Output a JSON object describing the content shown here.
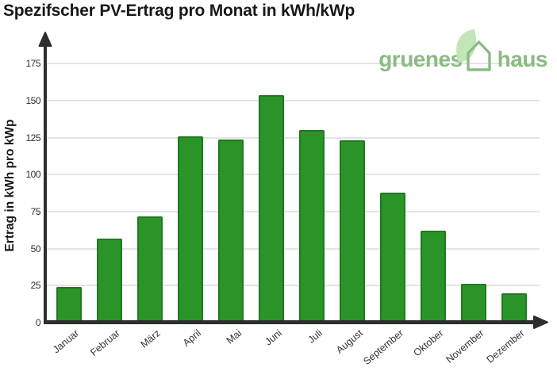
{
  "page": {
    "title": "Spezifscher PV-Ertrag pro Monat in kWh/kWp"
  },
  "logo": {
    "word_left": "gruenes",
    "word_right": "haus",
    "icon": "leaf-house-icon",
    "text_color": "#8cba85",
    "leaf_color": "#bfe5b2",
    "house_outline_color": "#8cba85"
  },
  "chart_data": {
    "type": "bar",
    "title": "Spezifscher PV-Ertrag pro Monat in kWh/kWp",
    "xlabel": "",
    "ylabel": "Ertrag in kWh pro kWp",
    "categories": [
      "Januar",
      "Februar",
      "März",
      "April",
      "Mai",
      "Juni",
      "Juli",
      "August",
      "September",
      "Oktober",
      "November",
      "Dezember"
    ],
    "values": [
      24,
      57,
      72,
      126,
      124,
      154,
      130,
      123,
      88,
      62,
      26,
      20
    ],
    "yticks": [
      0,
      25,
      50,
      75,
      100,
      125,
      150,
      175
    ],
    "ylim": [
      0,
      190
    ],
    "grid": true,
    "legend": "none",
    "bar_color": "#2b9428",
    "bar_border_color": "#1d7a1d",
    "gridline_color": "#e4e4e4",
    "axis_color": "#2e2e2e",
    "tick_label_color": "#333333"
  }
}
